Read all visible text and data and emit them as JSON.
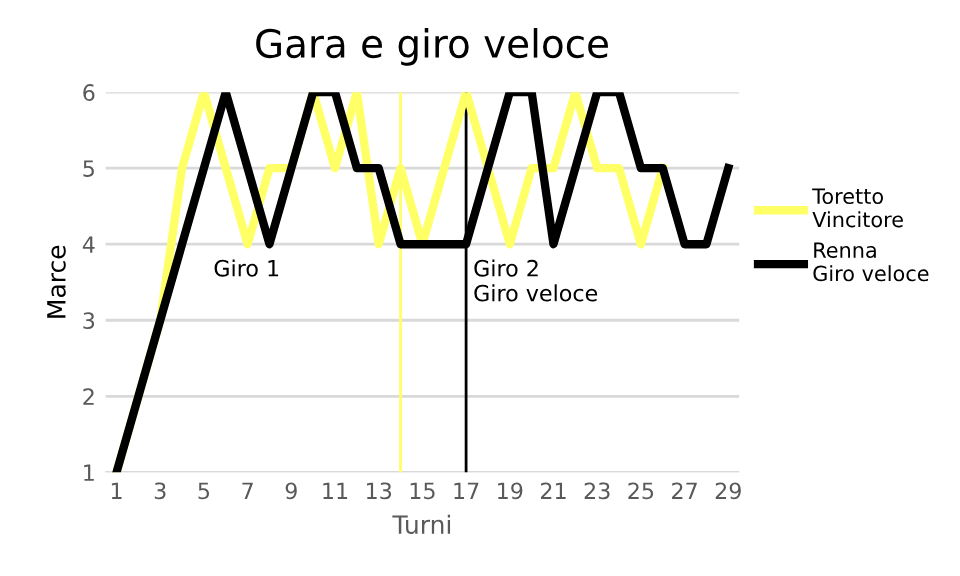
{
  "chart_data": {
    "type": "line",
    "title": "Gara e giro veloce",
    "xlabel": "Turni",
    "ylabel": "Marce",
    "x": [
      1,
      2,
      3,
      4,
      5,
      6,
      7,
      8,
      9,
      10,
      11,
      12,
      13,
      14,
      15,
      16,
      17,
      18,
      19,
      20,
      21,
      22,
      23,
      24,
      25,
      26,
      27,
      28,
      29
    ],
    "series": [
      {
        "name": "Toretto\nVincitore",
        "color": "#ffff66",
        "values": [
          1,
          2,
          3,
          5,
          6,
          5,
          4,
          5,
          5,
          6,
          5,
          6,
          4,
          5,
          4,
          5,
          6,
          5,
          4,
          5,
          5,
          6,
          5,
          5,
          4,
          5,
          null,
          null,
          null
        ]
      },
      {
        "name": "Renna\nGiro veloce",
        "color": "#000000",
        "values": [
          1,
          2,
          3,
          4,
          5,
          6,
          5,
          4,
          5,
          6,
          6,
          5,
          5,
          4,
          4,
          4,
          4,
          5,
          6,
          6,
          4,
          5,
          6,
          6,
          5,
          5,
          4,
          4,
          5
        ]
      }
    ],
    "ref_lines": [
      {
        "axis": "x",
        "value": 14,
        "color": "#ffff66"
      },
      {
        "axis": "x",
        "value": 17,
        "color": "#000000"
      }
    ],
    "annotations": [
      "Giro 1",
      "Giro 2\nGiro veloce"
    ],
    "xlim": [
      0.5,
      29.5
    ],
    "xticks": [
      1,
      3,
      5,
      7,
      9,
      11,
      13,
      15,
      17,
      19,
      21,
      23,
      25,
      27,
      29
    ],
    "ylim": [
      1,
      6
    ],
    "yticks": [
      1,
      2,
      3,
      4,
      5,
      6
    ],
    "grid": "y",
    "legend": "right",
    "marker": "none",
    "line_style": "solid"
  }
}
